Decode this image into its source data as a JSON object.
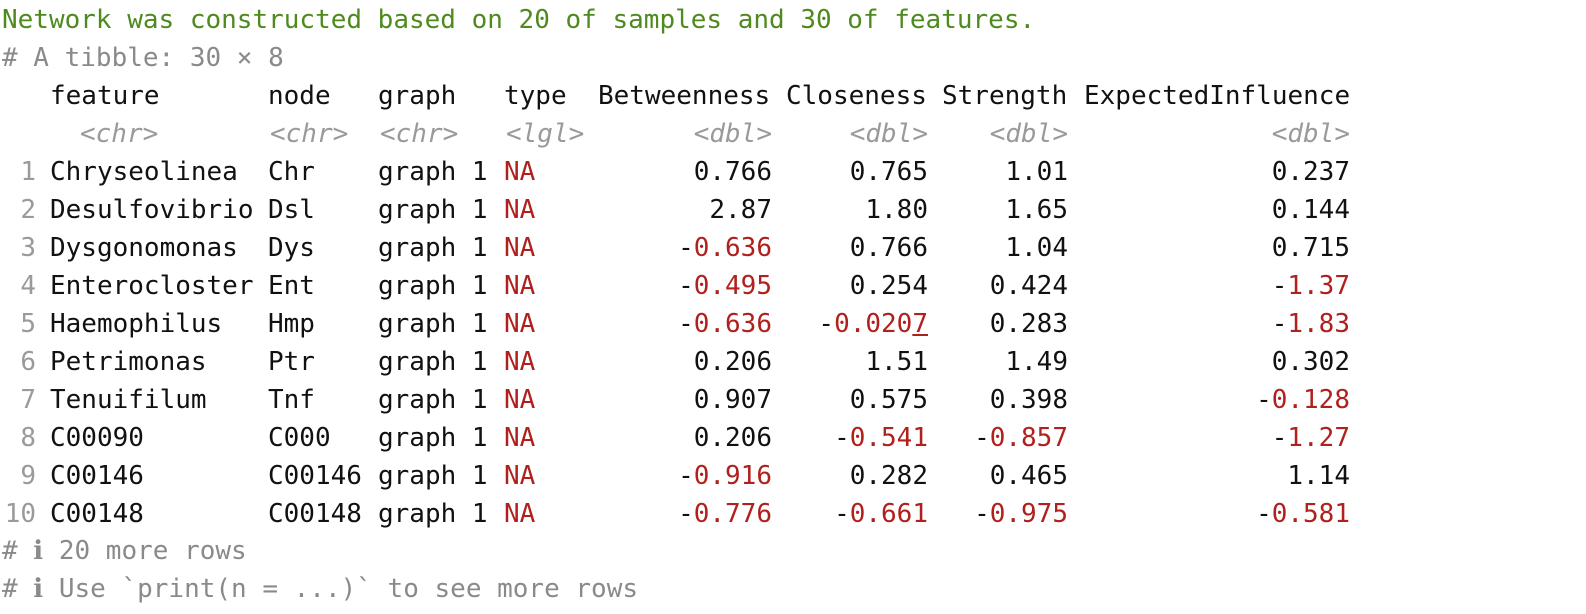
{
  "console": {
    "message": "Network was constructed based on 20 of samples and 30 of features.",
    "tibble_header": "# A tibble: 30 × 8",
    "columns": [
      {
        "name": "feature",
        "type": "<chr>"
      },
      {
        "name": "node",
        "type": "<chr>"
      },
      {
        "name": "graph",
        "type": "<chr>"
      },
      {
        "name": "type",
        "type": "<lgl>"
      },
      {
        "name": "Betweenness",
        "type": "<dbl>"
      },
      {
        "name": "Closeness",
        "type": "<dbl>"
      },
      {
        "name": "Strength",
        "type": "<dbl>"
      },
      {
        "name": "ExpectedInfluence",
        "type": "<dbl>"
      }
    ],
    "rows": [
      {
        "n": "1",
        "feature": "Chryseolinea",
        "node": "Chr",
        "graph": "graph 1",
        "type": "NA",
        "betweenness": "0.766",
        "closeness": "0.765",
        "strength": "1.01",
        "expected_influence": "0.237"
      },
      {
        "n": "2",
        "feature": "Desulfovibrio",
        "node": "Dsl",
        "graph": "graph 1",
        "type": "NA",
        "betweenness": "2.87",
        "closeness": "1.80",
        "strength": "1.65",
        "expected_influence": "0.144"
      },
      {
        "n": "3",
        "feature": "Dysgonomonas",
        "node": "Dys",
        "graph": "graph 1",
        "type": "NA",
        "betweenness": "-0.636",
        "closeness": "0.766",
        "strength": "1.04",
        "expected_influence": "0.715"
      },
      {
        "n": "4",
        "feature": "Enterocloster",
        "node": "Ent",
        "graph": "graph 1",
        "type": "NA",
        "betweenness": "-0.495",
        "closeness": "0.254",
        "strength": "0.424",
        "expected_influence": "-1.37"
      },
      {
        "n": "5",
        "feature": "Haemophilus",
        "node": "Hmp",
        "graph": "graph 1",
        "type": "NA",
        "betweenness": "-0.636",
        "closeness": "-0.0207",
        "strength": "0.283",
        "expected_influence": "-1.83"
      },
      {
        "n": "6",
        "feature": "Petrimonas",
        "node": "Ptr",
        "graph": "graph 1",
        "type": "NA",
        "betweenness": "0.206",
        "closeness": "1.51",
        "strength": "1.49",
        "expected_influence": "0.302"
      },
      {
        "n": "7",
        "feature": "Tenuifilum",
        "node": "Tnf",
        "graph": "graph 1",
        "type": "NA",
        "betweenness": "0.907",
        "closeness": "0.575",
        "strength": "0.398",
        "expected_influence": "-0.128"
      },
      {
        "n": "8",
        "feature": "C00090",
        "node": "C000",
        "graph": "graph 1",
        "type": "NA",
        "betweenness": "0.206",
        "closeness": "-0.541",
        "strength": "-0.857",
        "expected_influence": "-1.27"
      },
      {
        "n": "9",
        "feature": "C00146",
        "node": "C00146",
        "graph": "graph 1",
        "type": "NA",
        "betweenness": "-0.916",
        "closeness": "0.282",
        "strength": "0.465",
        "expected_influence": "1.14"
      },
      {
        "n": "10",
        "feature": "C00148",
        "node": "C00148",
        "graph": "graph 1",
        "type": "NA",
        "betweenness": "-0.776",
        "closeness": "-0.661",
        "strength": "-0.975",
        "expected_influence": "-0.581"
      }
    ],
    "footer_more_rows": "# ℹ 20 more rows",
    "footer_hint": "# ℹ Use `print(n = ...)` to see more rows"
  },
  "colors": {
    "message": "#4f8a1f",
    "negative": "#b0201d",
    "muted": "#8a8a8a"
  }
}
